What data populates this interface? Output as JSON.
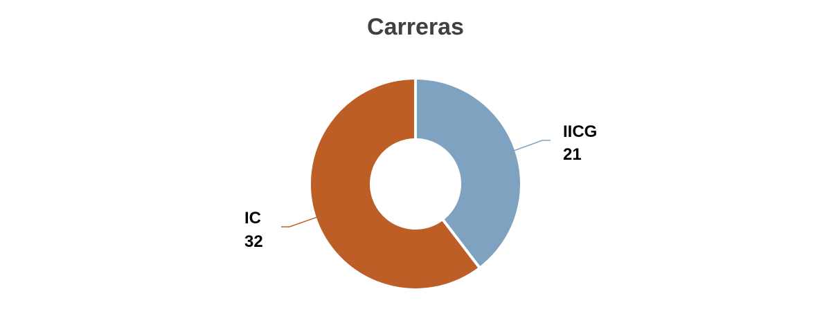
{
  "chart_data": {
    "type": "pie",
    "variant": "donut",
    "title": "Carreras",
    "slices": [
      {
        "label": "IICG",
        "value": 21,
        "color": "#7fa2c0"
      },
      {
        "label": "IC",
        "value": 32,
        "color": "#be5e27"
      }
    ],
    "data_labels": "outside-with-leader-lines",
    "legend": "none"
  }
}
